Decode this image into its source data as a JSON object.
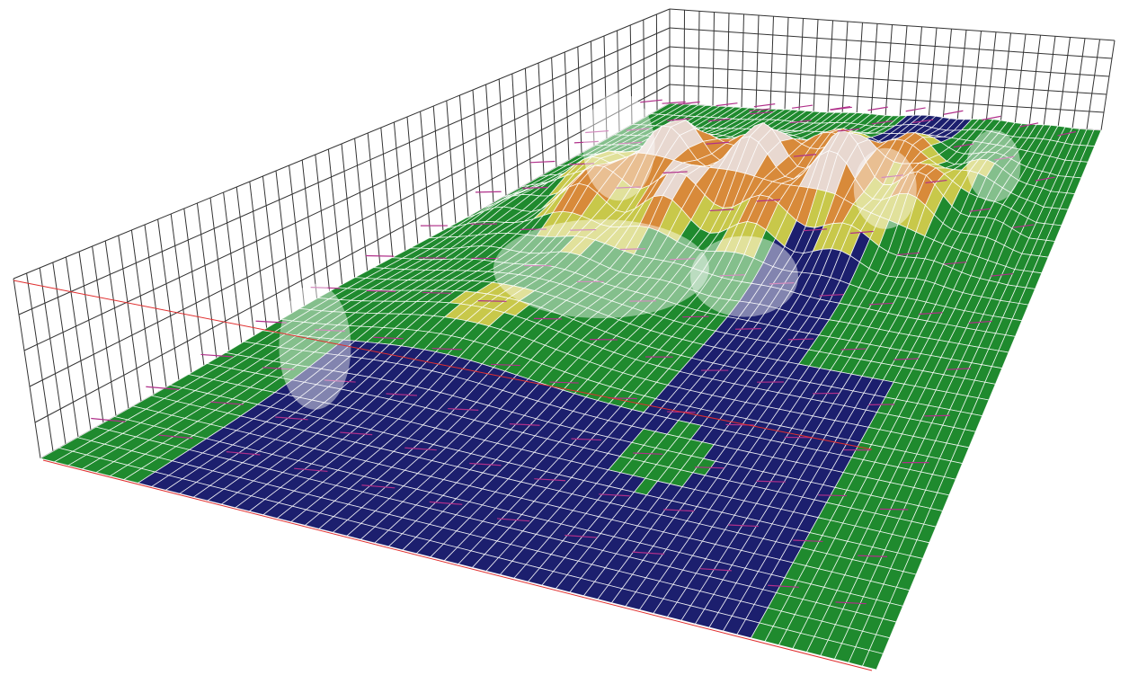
{
  "scene": {
    "kind": "3d-terrain-surface-with-vector-field",
    "colors": {
      "background": "#ffffff",
      "low": "#1c1f6e",
      "mid": "#1f8a2e",
      "high_yellow": "#c8c84a",
      "high_orange": "#d88a3a",
      "peak": "#e8d8d0",
      "mesh": "#ffffff",
      "box_lines": "#333333",
      "vectors": "#b0308a",
      "cut_line": "#e03030"
    }
  }
}
